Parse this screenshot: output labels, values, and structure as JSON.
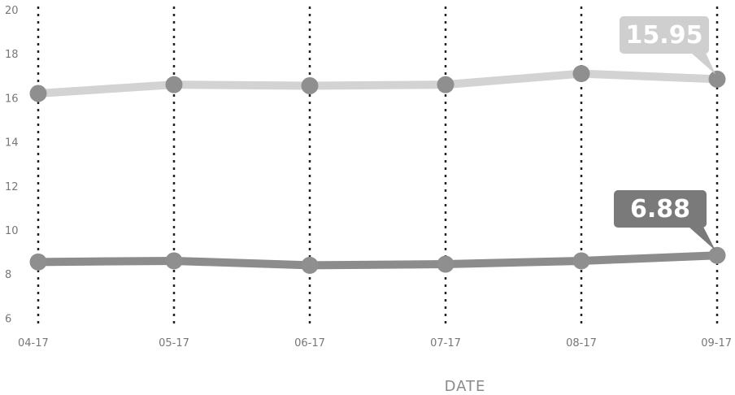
{
  "chart_data": {
    "type": "line",
    "xlabel": "DATE",
    "ylabel": "",
    "x": [
      "04-17",
      "05-17",
      "06-17",
      "07-17",
      "08-17",
      "09-17"
    ],
    "ylim": [
      5.5,
      20
    ],
    "yticks": [
      6,
      8,
      10,
      12,
      14,
      16,
      18,
      20
    ],
    "grid": "vertical dotted lines at each date",
    "legend": "none",
    "series": [
      {
        "values": [
          16.2,
          16.6,
          16.55,
          16.6,
          17.1,
          16.85
        ],
        "color": "#d3d3d3",
        "marker_color": "#8f8f8f",
        "callout": {
          "label": "15.95",
          "color": "#cfcfcf"
        }
      },
      {
        "values": [
          8.55,
          8.6,
          8.4,
          8.45,
          8.6,
          8.85
        ],
        "color": "#8c8c8c",
        "marker_color": "#8f8f8f",
        "callout": {
          "label": "6.88",
          "color": "#7a7a7a"
        }
      }
    ]
  }
}
